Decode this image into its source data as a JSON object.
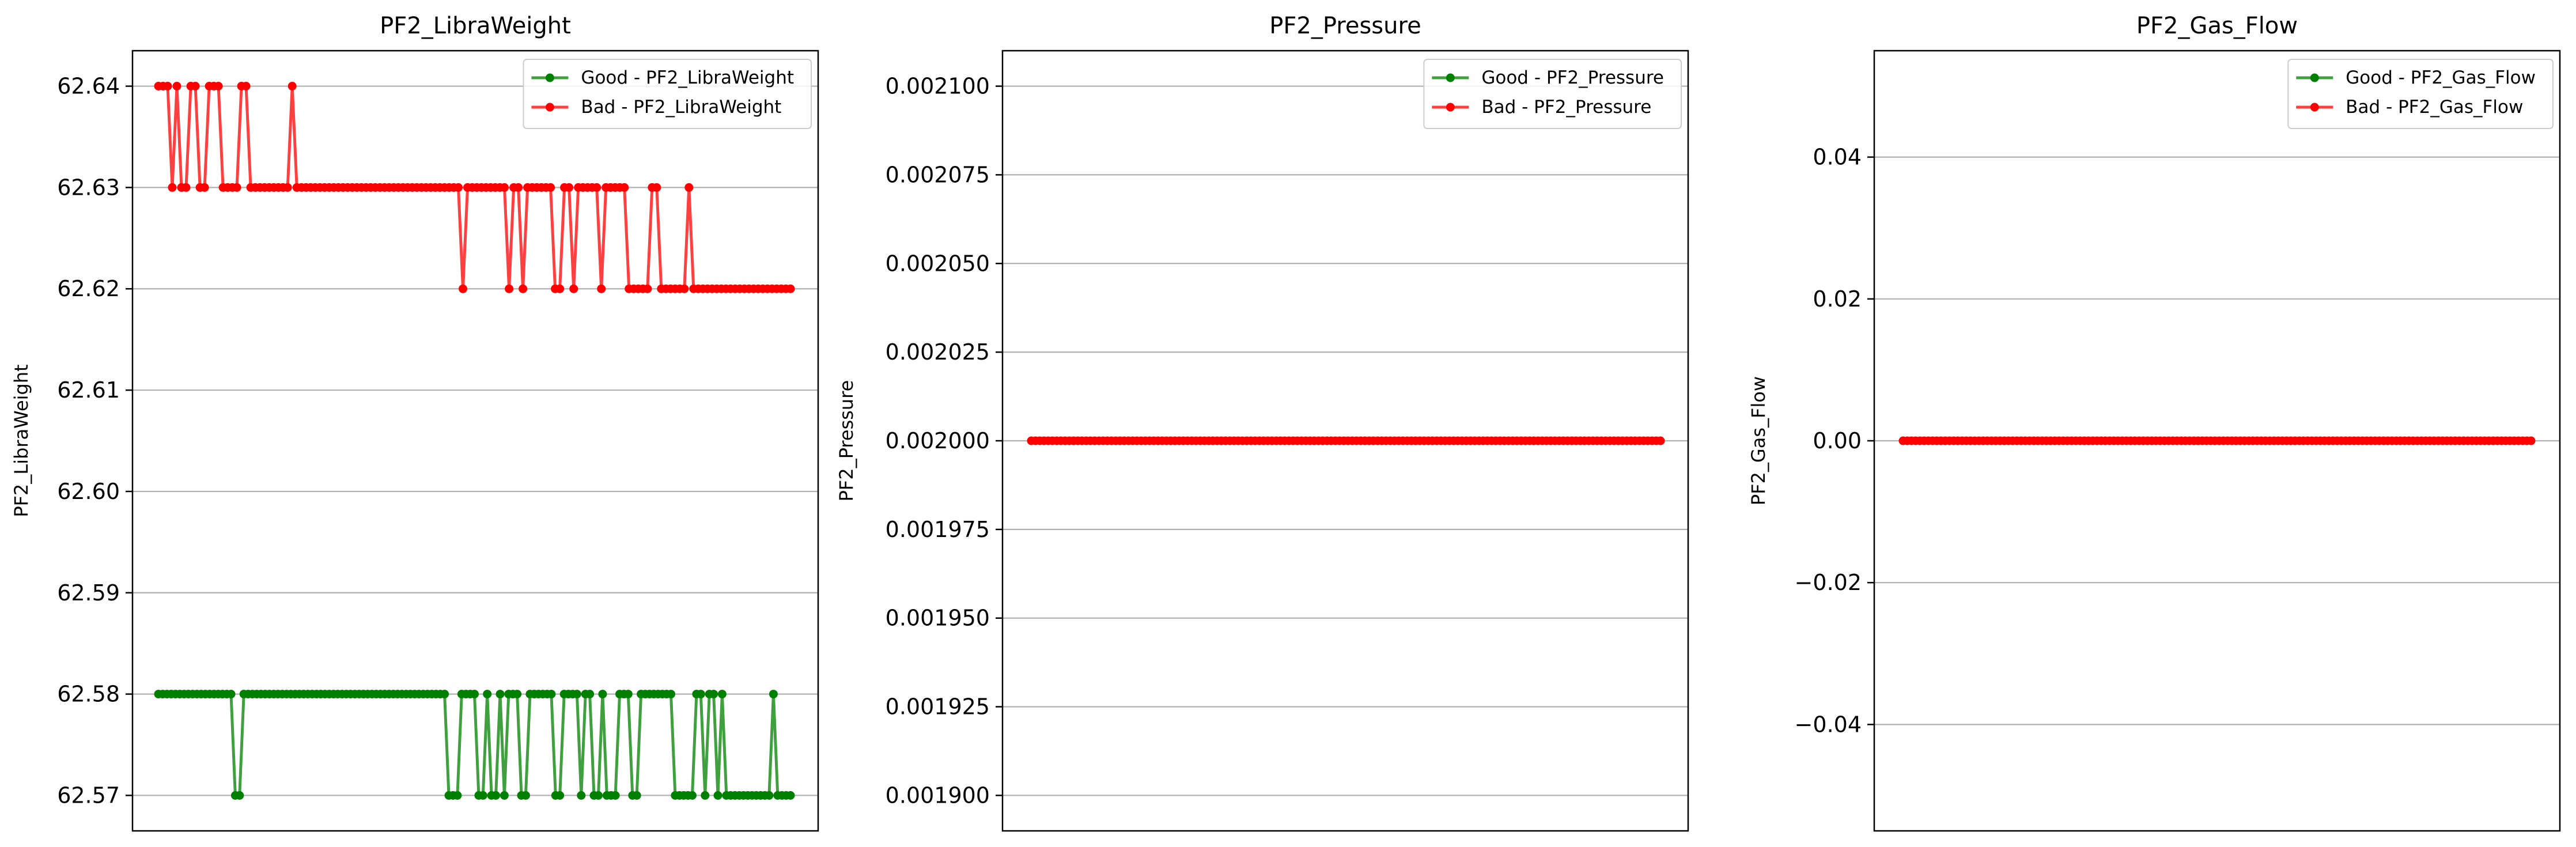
{
  "colors": {
    "good": "#008000",
    "bad": "#ff0000",
    "grid": "#b0b0b0",
    "axis": "#000000"
  },
  "chart_data": [
    {
      "type": "line",
      "title": "PF2_LibraWeight",
      "xlabel": "",
      "ylabel": "PF2_LibraWeight",
      "ylim": [
        62.5665,
        62.6435
      ],
      "yticks": [
        62.57,
        62.58,
        62.59,
        62.6,
        62.61,
        62.62,
        62.63,
        62.64
      ],
      "ytick_labels": [
        "62.57",
        "62.58",
        "62.59",
        "62.60",
        "62.61",
        "62.62",
        "62.63",
        "62.64"
      ],
      "grid": "y",
      "legend": "top-right",
      "x_ticks_visible": false,
      "series": [
        {
          "name": "Good - PF2_LibraWeight",
          "color": "#008000",
          "runs": [
            [
              18,
              62.58
            ],
            [
              1,
              62.57
            ],
            [
              1,
              62.57
            ],
            [
              48,
              62.58
            ],
            [
              3,
              62.57
            ],
            [
              4,
              62.58
            ],
            [
              2,
              62.57
            ],
            [
              1,
              62.58
            ],
            [
              2,
              62.57
            ],
            [
              1,
              62.58
            ],
            [
              1,
              62.57
            ],
            [
              3,
              62.58
            ],
            [
              2,
              62.57
            ],
            [
              6,
              62.58
            ],
            [
              2,
              62.57
            ],
            [
              4,
              62.58
            ],
            [
              1,
              62.57
            ],
            [
              2,
              62.58
            ],
            [
              2,
              62.57
            ],
            [
              1,
              62.58
            ],
            [
              3,
              62.57
            ],
            [
              3,
              62.58
            ],
            [
              2,
              62.57
            ],
            [
              8,
              62.58
            ],
            [
              5,
              62.57
            ],
            [
              2,
              62.58
            ],
            [
              1,
              62.57
            ],
            [
              2,
              62.58
            ],
            [
              1,
              62.57
            ],
            [
              1,
              62.58
            ],
            [
              11,
              62.57
            ],
            [
              1,
              62.58
            ],
            [
              4,
              62.57
            ]
          ]
        },
        {
          "name": "Bad - PF2_LibraWeight",
          "color": "#ff0000",
          "runs": [
            [
              3,
              62.64
            ],
            [
              1,
              62.63
            ],
            [
              1,
              62.64
            ],
            [
              2,
              62.63
            ],
            [
              2,
              62.64
            ],
            [
              2,
              62.63
            ],
            [
              3,
              62.64
            ],
            [
              4,
              62.63
            ],
            [
              2,
              62.64
            ],
            [
              9,
              62.63
            ],
            [
              1,
              62.64
            ],
            [
              36,
              62.63
            ],
            [
              1,
              62.62
            ],
            [
              9,
              62.63
            ],
            [
              1,
              62.62
            ],
            [
              2,
              62.63
            ],
            [
              1,
              62.62
            ],
            [
              6,
              62.63
            ],
            [
              2,
              62.62
            ],
            [
              2,
              62.63
            ],
            [
              1,
              62.62
            ],
            [
              5,
              62.63
            ],
            [
              1,
              62.62
            ],
            [
              5,
              62.63
            ],
            [
              5,
              62.62
            ],
            [
              2,
              62.63
            ],
            [
              6,
              62.62
            ],
            [
              1,
              62.63
            ],
            [
              22,
              62.62
            ]
          ]
        }
      ]
    },
    {
      "type": "line",
      "title": "PF2_Pressure",
      "xlabel": "",
      "ylabel": "PF2_Pressure",
      "ylim": [
        0.00189,
        0.00211
      ],
      "yticks": [
        0.0019,
        0.001925,
        0.00195,
        0.001975,
        0.002,
        0.002025,
        0.00205,
        0.002075,
        0.0021
      ],
      "ytick_labels": [
        "0.001900",
        "0.001925",
        "0.001950",
        "0.001975",
        "0.002000",
        "0.002025",
        "0.002050",
        "0.002075",
        "0.002100"
      ],
      "grid": "y",
      "legend": "top-right",
      "x_ticks_visible": false,
      "series": [
        {
          "name": "Good - PF2_Pressure",
          "color": "#008000",
          "runs": []
        },
        {
          "name": "Bad - PF2_Pressure",
          "color": "#ff0000",
          "runs": [
            [
              150,
              0.002
            ]
          ]
        }
      ]
    },
    {
      "type": "line",
      "title": "PF2_Gas_Flow",
      "xlabel": "",
      "ylabel": "PF2_Gas_Flow",
      "ylim": [
        -0.055,
        0.055
      ],
      "yticks": [
        -0.04,
        -0.02,
        0.0,
        0.02,
        0.04
      ],
      "ytick_labels": [
        "−0.04",
        "−0.02",
        "0.00",
        "0.02",
        "0.04"
      ],
      "grid": "y",
      "legend": "top-right",
      "x_ticks_visible": false,
      "series": [
        {
          "name": "Good - PF2_Gas_Flow",
          "color": "#008000",
          "runs": []
        },
        {
          "name": "Bad - PF2_Gas_Flow",
          "color": "#ff0000",
          "runs": [
            [
              150,
              0.0
            ]
          ]
        }
      ]
    }
  ]
}
